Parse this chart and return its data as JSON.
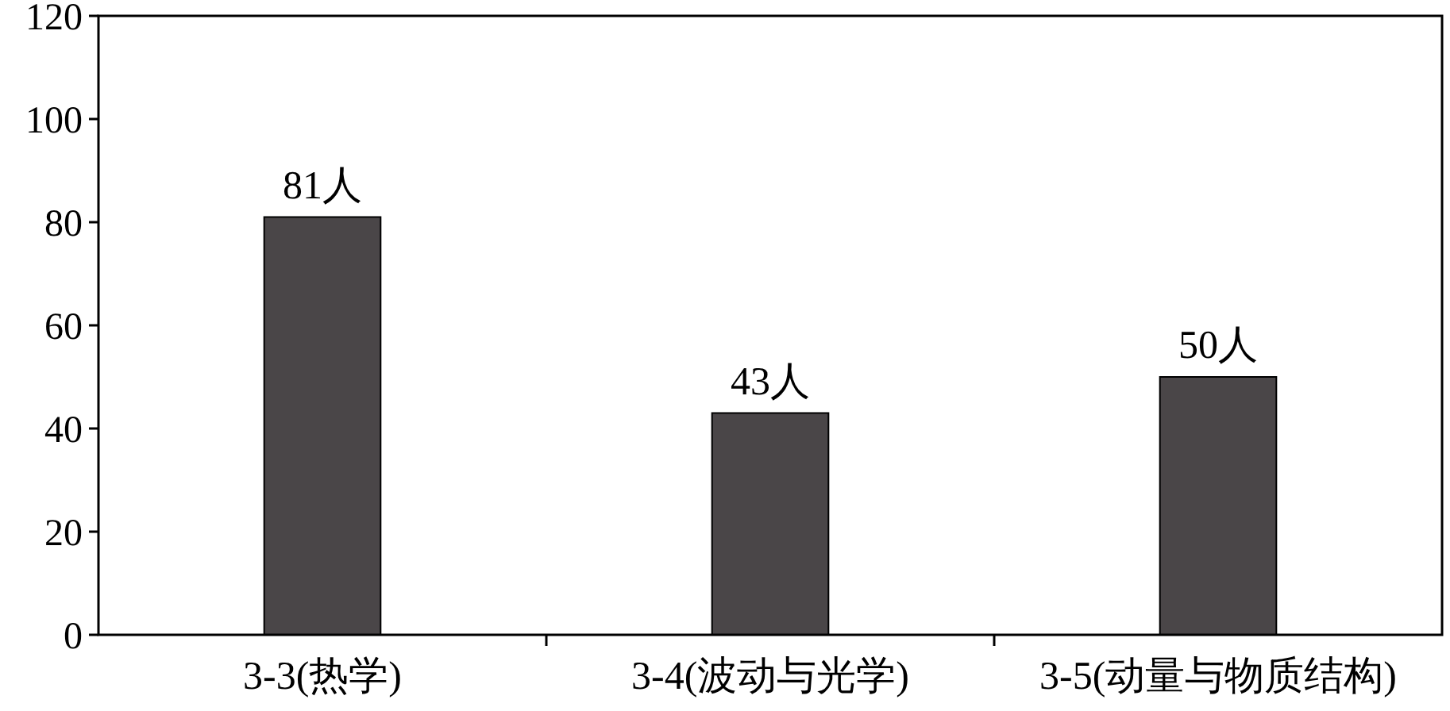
{
  "chart_data": {
    "type": "bar",
    "categories": [
      "3-3(热学)",
      "3-4(波动与光学)",
      "3-5(动量与物质结构)"
    ],
    "values": [
      81,
      43,
      50
    ],
    "color": "#4a4648",
    "value_labels": [
      "81人",
      "43人",
      "50人"
    ],
    "ylim": [
      0,
      120
    ],
    "yticks": [
      0,
      20,
      40,
      60,
      80,
      100,
      120
    ],
    "grid": false
  }
}
